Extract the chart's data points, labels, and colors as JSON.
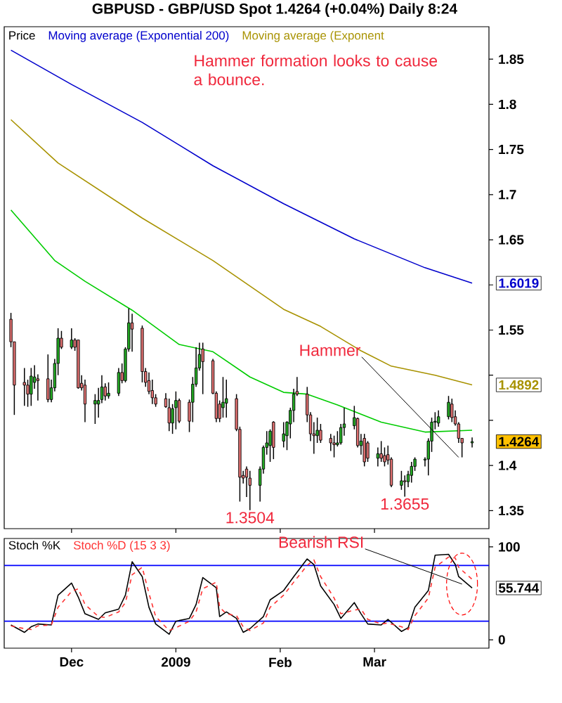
{
  "chart_data": [
    {
      "type": "candlestick",
      "title": "GBPUSD - GBP/USD Spot 1.4264 (+0.04%) Daily 8:24",
      "legend_title": "Price",
      "legend": "top left",
      "tick_labels": "y",
      "x": [
        "2008-11-13",
        "2008-11-14",
        "2008-11-17",
        "2008-11-18",
        "2008-11-19",
        "2008-11-20",
        "2008-11-21",
        "2008-11-24",
        "2008-11-25",
        "2008-11-26",
        "2008-11-27",
        "2008-11-28",
        "2008-12-01",
        "2008-12-02",
        "2008-12-03",
        "2008-12-04",
        "2008-12-05",
        "2008-12-08",
        "2008-12-09",
        "2008-12-10",
        "2008-12-11",
        "2008-12-12",
        "2008-12-15",
        "2008-12-16",
        "2008-12-17",
        "2008-12-18",
        "2008-12-19",
        "2008-12-22",
        "2008-12-23",
        "2008-12-24",
        "2008-12-25",
        "2008-12-26",
        "2008-12-29",
        "2008-12-30",
        "2008-12-31",
        "2009-01-01",
        "2009-01-02",
        "2009-01-05",
        "2009-01-06",
        "2009-01-07",
        "2009-01-08",
        "2009-01-09",
        "2009-01-12",
        "2009-01-13",
        "2009-01-14",
        "2009-01-15",
        "2009-01-16",
        "2009-01-19",
        "2009-01-20",
        "2009-01-21",
        "2009-01-22",
        "2009-01-23",
        "2009-01-26",
        "2009-01-27",
        "2009-01-28",
        "2009-01-29",
        "2009-01-30",
        "2009-02-02",
        "2009-02-03",
        "2009-02-04",
        "2009-02-05",
        "2009-02-06",
        "2009-02-09",
        "2009-02-10",
        "2009-02-11",
        "2009-02-12",
        "2009-02-13",
        "2009-02-16",
        "2009-02-17",
        "2009-02-18",
        "2009-02-19",
        "2009-02-20",
        "2009-02-23",
        "2009-02-24",
        "2009-02-25",
        "2009-02-26",
        "2009-02-27",
        "2009-03-02",
        "2009-03-03",
        "2009-03-04",
        "2009-03-05",
        "2009-03-06",
        "2009-03-09",
        "2009-03-10",
        "2009-03-11",
        "2009-03-12",
        "2009-03-13",
        "2009-03-16",
        "2009-03-17",
        "2009-03-18",
        "2009-03-19",
        "2009-03-20",
        "2009-03-23",
        "2009-03-24",
        "2009-03-25",
        "2009-03-26",
        "2009-03-27",
        "2009-03-30"
      ],
      "ohlc": [
        [
          1.562,
          1.569,
          1.531,
          1.537
        ],
        [
          1.537,
          1.537,
          1.456,
          1.489
        ],
        [
          1.492,
          1.508,
          1.466,
          1.489
        ],
        [
          1.489,
          1.495,
          1.465,
          1.479
        ],
        [
          1.479,
          1.508,
          1.466,
          1.499
        ],
        [
          1.492,
          1.511,
          1.485,
          1.498
        ],
        [
          1.496,
          1.501,
          1.472,
          1.494
        ],
        [
          1.496,
          1.523,
          1.47,
          1.473
        ],
        [
          1.473,
          1.495,
          1.47,
          1.486
        ],
        [
          1.486,
          1.518,
          1.482,
          1.513
        ],
        [
          1.513,
          1.552,
          1.5,
          1.541
        ],
        [
          1.541,
          1.549,
          1.529,
          1.531
        ],
        [
          1.531,
          1.552,
          1.529,
          1.539
        ],
        [
          1.539,
          1.541,
          1.527,
          1.531
        ],
        [
          1.539,
          1.539,
          1.485,
          1.486
        ],
        [
          1.491,
          1.5,
          1.483,
          1.486
        ],
        [
          1.489,
          1.495,
          1.448,
          1.468
        ],
        [
          1.468,
          1.479,
          1.446,
          1.472
        ],
        [
          1.468,
          1.486,
          1.453,
          1.472
        ],
        [
          1.473,
          1.5,
          1.469,
          1.487
        ],
        [
          1.487,
          1.491,
          1.472,
          1.477
        ],
        [
          1.477,
          1.492,
          1.474,
          1.48
        ],
        [
          1.48,
          1.508,
          1.477,
          1.503
        ],
        [
          1.503,
          1.513,
          1.491,
          1.494
        ],
        [
          1.494,
          1.531,
          1.492,
          1.529
        ],
        [
          1.529,
          1.574,
          1.526,
          1.558
        ],
        [
          1.558,
          1.568,
          1.526,
          1.551
        ],
        [
          1.552,
          1.555,
          1.492,
          1.504
        ],
        [
          1.504,
          1.508,
          1.487,
          1.492
        ],
        [
          1.494,
          1.503,
          1.479,
          1.482
        ],
        [
          1.483,
          1.495,
          1.468,
          1.475
        ],
        [
          1.475,
          1.479,
          1.465,
          1.468
        ],
        [
          1.474,
          1.48,
          1.464,
          1.465
        ],
        [
          1.464,
          1.474,
          1.438,
          1.447
        ],
        [
          1.447,
          1.468,
          1.435,
          1.463
        ],
        [
          1.464,
          1.482,
          1.44,
          1.472
        ],
        [
          1.472,
          1.474,
          1.447,
          1.449
        ],
        [
          1.47,
          1.473,
          1.437,
          1.449
        ],
        [
          1.47,
          1.498,
          1.448,
          1.49
        ],
        [
          1.49,
          1.531,
          1.487,
          1.508
        ],
        [
          1.508,
          1.536,
          1.505,
          1.523
        ],
        [
          1.529,
          1.536,
          1.479,
          1.515
        ],
        [
          1.516,
          1.518,
          1.479,
          1.48
        ],
        [
          1.48,
          1.482,
          1.448,
          1.452
        ],
        [
          1.468,
          1.472,
          1.448,
          1.452
        ],
        [
          1.464,
          1.498,
          1.453,
          1.47
        ],
        [
          1.469,
          1.495,
          1.453,
          1.474
        ],
        [
          1.474,
          1.479,
          1.438,
          1.44
        ],
        [
          1.44,
          1.443,
          1.36,
          1.387
        ],
        [
          1.389,
          1.394,
          1.38,
          1.386
        ],
        [
          1.396,
          1.399,
          1.365,
          1.387
        ],
        [
          1.386,
          1.394,
          1.3504,
          1.378
        ],
        [
          1.378,
          1.399,
          1.36,
          1.396
        ],
        [
          1.396,
          1.422,
          1.391,
          1.42
        ],
        [
          1.42,
          1.438,
          1.412,
          1.425
        ],
        [
          1.422,
          1.44,
          1.404,
          1.438
        ],
        [
          1.448,
          1.449,
          1.407,
          1.42
        ],
        [
          1.427,
          1.448,
          1.42,
          1.435
        ],
        [
          1.433,
          1.449,
          1.417,
          1.448
        ],
        [
          1.446,
          1.464,
          1.43,
          1.461
        ],
        [
          1.461,
          1.485,
          1.448,
          1.479
        ],
        [
          1.482,
          1.498,
          1.477,
          1.479
        ],
        [
          1.479,
          1.487,
          1.448,
          1.456
        ],
        [
          1.456,
          1.459,
          1.427,
          1.435
        ],
        [
          1.435,
          1.448,
          1.413,
          1.433
        ],
        [
          1.433,
          1.453,
          1.425,
          1.439
        ],
        [
          1.439,
          1.446,
          1.425,
          1.428
        ],
        [
          1.43,
          1.435,
          1.416,
          1.425
        ],
        [
          1.425,
          1.433,
          1.409,
          1.423
        ],
        [
          1.423,
          1.438,
          1.421,
          1.425
        ],
        [
          1.425,
          1.446,
          1.423,
          1.442
        ],
        [
          1.442,
          1.464,
          1.433,
          1.446
        ],
        [
          1.444,
          1.466,
          1.44,
          1.453
        ],
        [
          1.452,
          1.453,
          1.42,
          1.422
        ],
        [
          1.422,
          1.435,
          1.412,
          1.427
        ],
        [
          1.43,
          1.435,
          1.399,
          1.404
        ],
        [
          1.425,
          1.427,
          1.404,
          1.408
        ],
        [
          1.408,
          1.42,
          1.399,
          1.413
        ],
        [
          1.413,
          1.427,
          1.404,
          1.408
        ],
        [
          1.411,
          1.42,
          1.399,
          1.404
        ],
        [
          1.412,
          1.422,
          1.401,
          1.406
        ],
        [
          1.407,
          1.409,
          1.376,
          1.378
        ],
        [
          1.378,
          1.394,
          1.373,
          1.383
        ],
        [
          1.383,
          1.389,
          1.3655,
          1.382
        ],
        [
          1.382,
          1.394,
          1.376,
          1.39
        ],
        [
          1.389,
          1.404,
          1.381,
          1.399
        ],
        [
          1.399,
          1.409,
          1.394,
          1.407
        ],
        [
          1.406,
          1.409,
          1.399,
          1.407
        ],
        [
          1.407,
          1.43,
          1.389,
          1.427
        ],
        [
          1.427,
          1.453,
          1.415,
          1.448
        ],
        [
          1.448,
          1.459,
          1.44,
          1.449
        ],
        [
          1.447,
          1.461,
          1.443,
          1.454
        ],
        [
          1.454,
          1.477,
          1.451,
          1.47
        ],
        [
          1.468,
          1.474,
          1.448,
          1.453
        ],
        [
          1.454,
          1.461,
          1.444,
          1.446
        ],
        [
          1.446,
          1.448,
          1.425,
          1.43
        ],
        [
          1.43,
          1.43,
          1.409,
          1.425
        ],
        [
          1.425,
          1.431,
          1.42,
          1.4264
        ]
      ],
      "series": [
        {
          "name": "Moving average (Exponential 200)",
          "type": "line",
          "color": "#0000cc",
          "x": [
            "2008-11-13",
            "2008-12-01",
            "2008-12-22",
            "2009-01-12",
            "2009-02-02",
            "2009-02-23",
            "2009-03-16",
            "2009-03-30"
          ],
          "values": [
            1.86,
            1.822,
            1.78,
            1.732,
            1.69,
            1.651,
            1.619,
            1.6019
          ]
        },
        {
          "name": "Moving average (Exponent",
          "type": "line",
          "color": "#a89200",
          "x": [
            "2008-11-13",
            "2008-11-27",
            "2008-12-22",
            "2009-01-12",
            "2009-02-02",
            "2009-02-13",
            "2009-02-25",
            "2009-03-06",
            "2009-03-19",
            "2009-03-30"
          ],
          "values": [
            1.783,
            1.735,
            1.674,
            1.627,
            1.573,
            1.554,
            1.527,
            1.51,
            1.5,
            1.4892
          ]
        },
        {
          "type": "line",
          "color": "#00cc00",
          "x": [
            "2008-11-13",
            "2008-11-26",
            "2008-12-05",
            "2008-12-19",
            "2009-01-02",
            "2009-01-12",
            "2009-01-23",
            "2009-02-02",
            "2009-02-09",
            "2009-02-18",
            "2009-03-03",
            "2009-03-16",
            "2009-03-30"
          ],
          "values": [
            1.683,
            1.627,
            1.604,
            1.572,
            1.534,
            1.526,
            1.498,
            1.481,
            1.479,
            1.467,
            1.448,
            1.437,
            1.439
          ]
        }
      ],
      "xlim": [
        "2008-11-11",
        "2009-04-04"
      ],
      "ylim": [
        1.33,
        1.886
      ],
      "xticks": [
        {
          "value": "2008-12-01",
          "label": null
        },
        {
          "value": "2009-01-01",
          "label": null
        },
        {
          "value": "2009-02-01",
          "label": null
        },
        {
          "value": "2009-03-01",
          "label": null
        }
      ],
      "yticks": [
        1.35,
        1.4,
        {
          "value": 1.45,
          "label": null
        },
        {
          "value": 1.5,
          "label": null
        },
        1.55,
        {
          "value": 1.6,
          "label": null
        },
        1.65,
        1.7,
        1.75,
        1.8,
        1.85
      ],
      "annotations": [
        "Hammer formation looks to cause a bounce.",
        {
          "text": "Hammer",
          "x": "2009-03-26",
          "y": 1.409
        },
        {
          "text": "1.3504",
          "x": "2009-01-23",
          "y": 1.3504
        },
        {
          "text": "1.3655",
          "x": "2009-03-10",
          "y": 1.3655
        },
        {
          "text": "1.6019",
          "x": "2009-03-30",
          "y": 1.6019
        },
        {
          "text": "1.4892",
          "x": "2009-03-30",
          "y": 1.4892
        },
        {
          "text": "1.4264",
          "x": "2009-03-30",
          "y": 1.4264
        }
      ]
    },
    {
      "type": "line",
      "legend": "top left",
      "x": [
        "2008-11-13",
        "2008-11-17",
        "2008-11-19",
        "2008-11-21",
        "2008-11-25",
        "2008-11-27",
        "2008-12-01",
        "2008-12-03",
        "2008-12-05",
        "2008-12-09",
        "2008-12-11",
        "2008-12-15",
        "2008-12-17",
        "2008-12-19",
        "2008-12-22",
        "2008-12-24",
        "2008-12-26",
        "2008-12-30",
        "2009-01-01",
        "2009-01-05",
        "2009-01-07",
        "2009-01-09",
        "2009-01-13",
        "2009-01-14",
        "2009-01-16",
        "2009-01-19",
        "2009-01-21",
        "2009-01-23",
        "2009-01-27",
        "2009-01-29",
        "2009-02-02",
        "2009-02-05",
        "2009-02-09",
        "2009-02-11",
        "2009-02-13",
        "2009-02-17",
        "2009-02-19",
        "2009-02-23",
        "2009-02-25",
        "2009-02-27",
        "2009-03-03",
        "2009-03-05",
        "2009-03-09",
        "2009-03-11",
        "2009-03-13",
        "2009-03-17",
        "2009-03-19",
        "2009-03-23",
        "2009-03-25",
        "2009-03-26",
        "2009-03-30"
      ],
      "series": [
        {
          "name": "Stoch %K",
          "color": "#000000",
          "line_style": "solid",
          "values": [
            16,
            8,
            14,
            17,
            16,
            48,
            61,
            46,
            28,
            22,
            29,
            33,
            48,
            84,
            68,
            35,
            17,
            6,
            20,
            23,
            38,
            67,
            56,
            25,
            30,
            23,
            8,
            12,
            25,
            43,
            53,
            68,
            87,
            81,
            58,
            38,
            23,
            40,
            28,
            17,
            16,
            22,
            9,
            13,
            35,
            53,
            91,
            92,
            81,
            68,
            55.744
          ]
        },
        {
          "name": "Stoch %D (15 3 3)",
          "color": "#ff3333",
          "line_style": "dashed",
          "values": [
            15,
            12,
            11,
            15,
            16,
            35,
            52,
            55,
            38,
            25,
            24,
            30,
            40,
            70,
            78,
            50,
            25,
            10,
            13,
            20,
            30,
            55,
            62,
            35,
            28,
            26,
            14,
            10,
            18,
            35,
            48,
            62,
            80,
            86,
            68,
            45,
            28,
            32,
            33,
            22,
            17,
            18,
            14,
            11,
            26,
            45,
            78,
            89,
            88,
            78,
            65
          ]
        }
      ],
      "xlim": [
        "2008-11-11",
        "2009-04-04"
      ],
      "ylim": [
        -9,
        109
      ],
      "xticks": [
        {
          "value": "2008-12-01",
          "label": "Dec"
        },
        {
          "value": "2009-01-01",
          "label": "2009"
        },
        {
          "value": "2009-02-01",
          "label": "Feb"
        },
        {
          "value": "2009-03-01",
          "label": "Mar"
        }
      ],
      "yticks": [
        0,
        100
      ],
      "ref_lines": [
        {
          "axis": "y",
          "value": 80,
          "color": "#0000ff"
        },
        {
          "axis": "y",
          "value": 20,
          "color": "#0000ff"
        }
      ],
      "annotations": [
        {
          "text": "Bearish RSI",
          "x": "2009-03-27",
          "y": 60
        },
        {
          "text": "55.744",
          "x": "2009-03-30",
          "y": 55.744
        }
      ]
    }
  ]
}
